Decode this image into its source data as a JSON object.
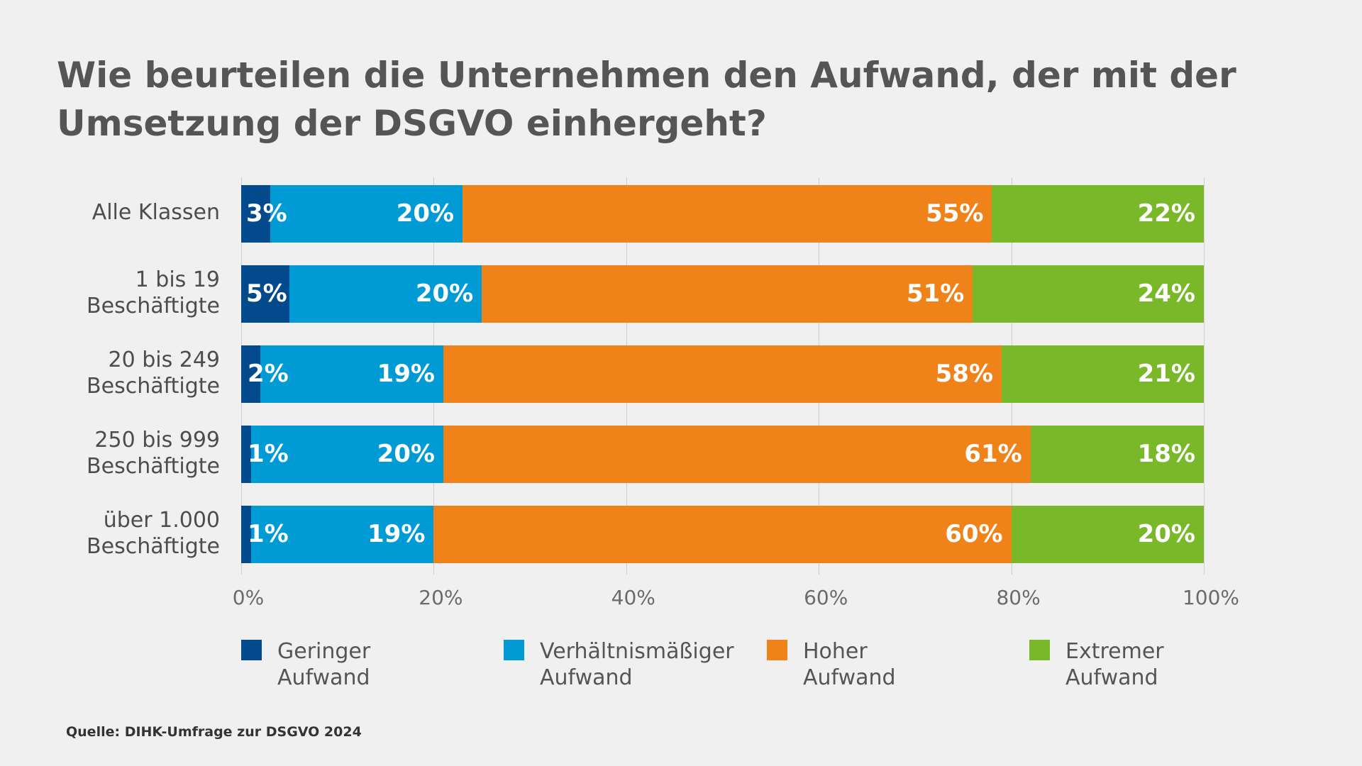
{
  "chart_data": {
    "type": "bar",
    "orientation": "horizontal",
    "stacked": true,
    "title": "Wie beurteilen die Unternehmen den Aufwand, der mit der Umsetzung der DSGVO einhergeht?",
    "categories": [
      "Alle Klassen",
      "1 bis 19\nBeschäftigte",
      "20 bis 249\nBeschäftigte",
      "250 bis 999\nBeschäftigte",
      "über 1.000\nBeschäftigte"
    ],
    "series": [
      {
        "name": "Geringer Aufwand",
        "color": "#034a8c",
        "values": [
          3,
          5,
          2,
          1,
          1
        ]
      },
      {
        "name": "Verhältnismäßiger Aufwand",
        "color": "#009bd5",
        "values": [
          20,
          20,
          19,
          20,
          19
        ]
      },
      {
        "name": "Hoher Aufwand",
        "color": "#f0821a",
        "values": [
          55,
          51,
          58,
          61,
          60
        ]
      },
      {
        "name": "Extremer Aufwand",
        "color": "#79b829",
        "values": [
          22,
          24,
          21,
          18,
          20
        ]
      }
    ],
    "legend_lines": [
      [
        "Geringer",
        "Aufwand"
      ],
      [
        "Verhältnismäßiger",
        "Aufwand"
      ],
      [
        "Hoher",
        "Aufwand"
      ],
      [
        "Extremer",
        "Aufwand"
      ]
    ],
    "xlim": [
      0,
      100
    ],
    "xticks": [
      "0%",
      "20%",
      "40%",
      "60%",
      "80%",
      "100%"
    ],
    "grid": true,
    "legend_position": "bottom",
    "data_labels": true
  },
  "source": "Quelle: DIHK-Umfrage zur DSGVO 2024"
}
